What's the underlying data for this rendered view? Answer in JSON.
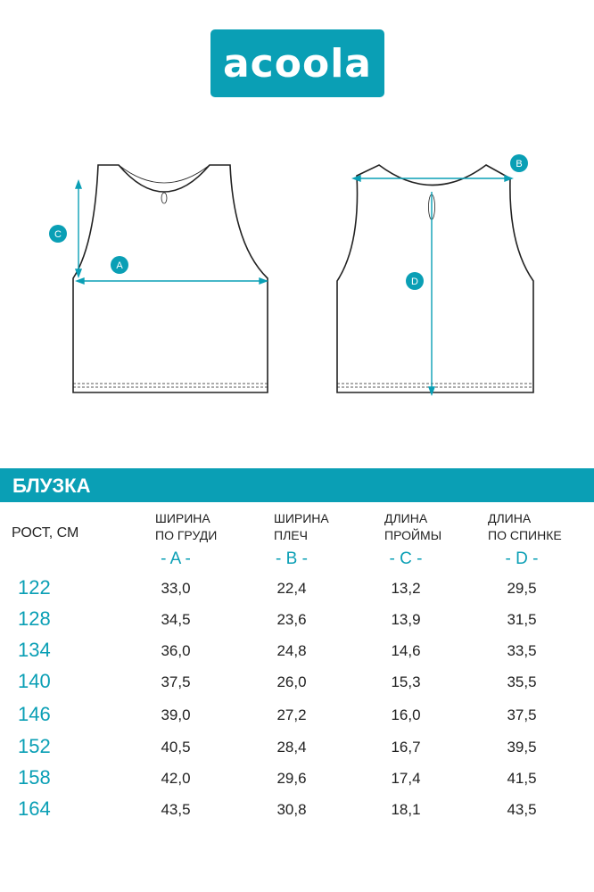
{
  "logo": {
    "text": "acoola"
  },
  "diagram": {
    "labels": [
      "A",
      "B",
      "C",
      "D"
    ]
  },
  "section_title": "БЛУЗКА",
  "table": {
    "row_header": "РОСТ, СМ",
    "columns": [
      {
        "line1": "ШИРИНА",
        "line2": "ПО ГРУДИ",
        "letter": "- A -"
      },
      {
        "line1": "ШИРИНА",
        "line2": "ПЛЕЧ",
        "letter": "- B -"
      },
      {
        "line1": "ДЛИНА",
        "line2": "ПРОЙМЫ",
        "letter": "- C -"
      },
      {
        "line1": "ДЛИНА",
        "line2": "ПО СПИНКЕ",
        "letter": "- D -"
      }
    ],
    "rows": [
      {
        "height": "122",
        "values": [
          "33,0",
          "22,4",
          "13,2",
          "29,5"
        ]
      },
      {
        "height": "128",
        "values": [
          "34,5",
          "23,6",
          "13,9",
          "31,5"
        ]
      },
      {
        "height": "134",
        "values": [
          "36,0",
          "24,8",
          "14,6",
          "33,5"
        ]
      },
      {
        "height": "140",
        "values": [
          "37,5",
          "26,0",
          "15,3",
          "35,5"
        ]
      },
      {
        "height": "146",
        "values": [
          "39,0",
          "27,2",
          "16,0",
          "37,5"
        ]
      },
      {
        "height": "152",
        "values": [
          "40,5",
          "28,4",
          "16,7",
          "39,5"
        ]
      },
      {
        "height": "158",
        "values": [
          "42,0",
          "29,6",
          "17,4",
          "41,5"
        ]
      },
      {
        "height": "164",
        "values": [
          "43,5",
          "30,8",
          "18,1",
          "43,5"
        ]
      }
    ]
  },
  "colors": {
    "accent": "#0a9fb5",
    "text": "#222222"
  }
}
